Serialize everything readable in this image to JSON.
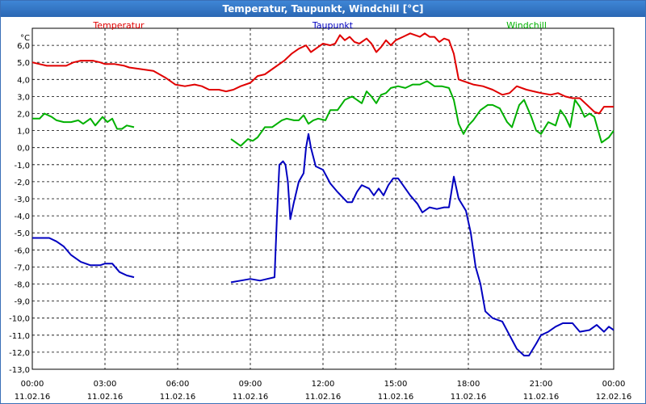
{
  "window_title": "Temperatur, Taupunkt, Windchill [°C]",
  "chart_data": {
    "type": "line",
    "title": "Temperatur, Taupunkt, Windchill [°C]",
    "ylabel": "°C",
    "ylim": [
      -13,
      7
    ],
    "xlim_hours": [
      0,
      24
    ],
    "grid": true,
    "legend_placement": "top",
    "y_ticks": [
      "6,0",
      "5,0",
      "4,0",
      "3,0",
      "2,0",
      "1,0",
      "0,0",
      "-1,0",
      "-2,0",
      "-3,0",
      "-4,0",
      "-5,0",
      "-6,0",
      "-7,0",
      "-8,0",
      "-9,0",
      "-10,0",
      "-11,0",
      "-12,0",
      "-13,0"
    ],
    "x_ticks": [
      {
        "time": "00:00",
        "date": "11.02.16"
      },
      {
        "time": "03:00",
        "date": "11.02.16"
      },
      {
        "time": "06:00",
        "date": "11.02.16"
      },
      {
        "time": "09:00",
        "date": "11.02.16"
      },
      {
        "time": "12:00",
        "date": "11.02.16"
      },
      {
        "time": "15:00",
        "date": "11.02.16"
      },
      {
        "time": "18:00",
        "date": "11.02.16"
      },
      {
        "time": "21:00",
        "date": "11.02.16"
      },
      {
        "time": "00:00",
        "date": "12.02.16"
      }
    ],
    "series": [
      {
        "name": "Temperatur",
        "color": "#e00000",
        "points": [
          [
            0,
            5.0
          ],
          [
            0.3,
            4.9
          ],
          [
            0.6,
            4.8
          ],
          [
            1.0,
            4.8
          ],
          [
            1.4,
            4.8
          ],
          [
            1.7,
            5.0
          ],
          [
            2.0,
            5.1
          ],
          [
            2.5,
            5.1
          ],
          [
            2.8,
            5.0
          ],
          [
            3.0,
            4.9
          ],
          [
            3.4,
            4.9
          ],
          [
            3.8,
            4.8
          ],
          [
            4.0,
            4.7
          ],
          [
            4.5,
            4.6
          ],
          [
            5.0,
            4.5
          ],
          [
            5.5,
            4.1
          ],
          [
            5.9,
            3.7
          ],
          [
            6.3,
            3.6
          ],
          [
            6.7,
            3.7
          ],
          [
            7.0,
            3.6
          ],
          [
            7.3,
            3.4
          ],
          [
            7.7,
            3.4
          ],
          [
            8.0,
            3.3
          ],
          [
            8.3,
            3.4
          ],
          [
            8.6,
            3.6
          ],
          [
            9.0,
            3.8
          ],
          [
            9.3,
            4.2
          ],
          [
            9.6,
            4.3
          ],
          [
            10.0,
            4.7
          ],
          [
            10.4,
            5.1
          ],
          [
            10.7,
            5.5
          ],
          [
            11.0,
            5.8
          ],
          [
            11.3,
            6.0
          ],
          [
            11.5,
            5.6
          ],
          [
            11.8,
            5.9
          ],
          [
            12.0,
            6.1
          ],
          [
            12.3,
            6.0
          ],
          [
            12.5,
            6.1
          ],
          [
            12.7,
            6.6
          ],
          [
            12.9,
            6.3
          ],
          [
            13.1,
            6.5
          ],
          [
            13.3,
            6.2
          ],
          [
            13.5,
            6.1
          ],
          [
            13.8,
            6.4
          ],
          [
            14.0,
            6.1
          ],
          [
            14.2,
            5.6
          ],
          [
            14.4,
            5.9
          ],
          [
            14.6,
            6.3
          ],
          [
            14.8,
            6.0
          ],
          [
            15.0,
            6.3
          ],
          [
            15.3,
            6.5
          ],
          [
            15.6,
            6.7
          ],
          [
            15.8,
            6.6
          ],
          [
            16.0,
            6.5
          ],
          [
            16.2,
            6.7
          ],
          [
            16.4,
            6.5
          ],
          [
            16.6,
            6.5
          ],
          [
            16.8,
            6.2
          ],
          [
            17.0,
            6.4
          ],
          [
            17.2,
            6.3
          ],
          [
            17.4,
            5.5
          ],
          [
            17.6,
            4.0
          ],
          [
            17.8,
            3.9
          ],
          [
            18.2,
            3.7
          ],
          [
            18.6,
            3.6
          ],
          [
            19.0,
            3.4
          ],
          [
            19.4,
            3.1
          ],
          [
            19.7,
            3.2
          ],
          [
            20.0,
            3.6
          ],
          [
            20.4,
            3.4
          ],
          [
            20.7,
            3.3
          ],
          [
            21.0,
            3.2
          ],
          [
            21.4,
            3.1
          ],
          [
            21.7,
            3.2
          ],
          [
            22.0,
            3.0
          ],
          [
            22.3,
            2.9
          ],
          [
            22.6,
            2.9
          ],
          [
            22.9,
            2.5
          ],
          [
            23.2,
            2.1
          ],
          [
            23.4,
            2.0
          ],
          [
            23.6,
            2.4
          ],
          [
            24.0,
            2.4
          ]
        ]
      },
      {
        "name": "Taupunkt",
        "color": "#0000c0",
        "points": [
          [
            0,
            -5.3
          ],
          [
            0.4,
            -5.3
          ],
          [
            0.7,
            -5.3
          ],
          [
            1.0,
            -5.5
          ],
          [
            1.3,
            -5.8
          ],
          [
            1.6,
            -6.3
          ],
          [
            2.0,
            -6.7
          ],
          [
            2.4,
            -6.9
          ],
          [
            2.8,
            -6.9
          ],
          [
            3.0,
            -6.8
          ],
          [
            3.3,
            -6.8
          ],
          [
            3.6,
            -7.3
          ],
          [
            3.9,
            -7.5
          ],
          [
            4.2,
            -7.6
          ],
          [
            null,
            null
          ],
          [
            8.2,
            -7.9
          ],
          [
            8.6,
            -7.8
          ],
          [
            9.0,
            -7.7
          ],
          [
            9.4,
            -7.8
          ],
          [
            9.7,
            -7.7
          ],
          [
            10.0,
            -7.6
          ],
          [
            10.1,
            -4.0
          ],
          [
            10.2,
            -1.0
          ],
          [
            10.35,
            -0.8
          ],
          [
            10.45,
            -1.0
          ],
          [
            10.55,
            -2.0
          ],
          [
            10.65,
            -4.2
          ],
          [
            10.8,
            -3.2
          ],
          [
            11.0,
            -2.0
          ],
          [
            11.2,
            -1.5
          ],
          [
            11.3,
            0.0
          ],
          [
            11.4,
            0.8
          ],
          [
            11.5,
            0.0
          ],
          [
            11.7,
            -1.1
          ],
          [
            12.0,
            -1.3
          ],
          [
            12.3,
            -2.1
          ],
          [
            12.6,
            -2.6
          ],
          [
            13.0,
            -3.2
          ],
          [
            13.2,
            -3.2
          ],
          [
            13.4,
            -2.6
          ],
          [
            13.6,
            -2.2
          ],
          [
            13.9,
            -2.4
          ],
          [
            14.1,
            -2.8
          ],
          [
            14.3,
            -2.4
          ],
          [
            14.5,
            -2.8
          ],
          [
            14.7,
            -2.2
          ],
          [
            14.9,
            -1.8
          ],
          [
            15.1,
            -1.8
          ],
          [
            15.3,
            -2.2
          ],
          [
            15.6,
            -2.8
          ],
          [
            15.9,
            -3.3
          ],
          [
            16.1,
            -3.8
          ],
          [
            16.4,
            -3.5
          ],
          [
            16.7,
            -3.6
          ],
          [
            17.0,
            -3.5
          ],
          [
            17.2,
            -3.5
          ],
          [
            17.4,
            -1.7
          ],
          [
            17.6,
            -3.0
          ],
          [
            17.9,
            -3.7
          ],
          [
            18.1,
            -5.0
          ],
          [
            18.3,
            -7.0
          ],
          [
            18.5,
            -8.0
          ],
          [
            18.7,
            -9.6
          ],
          [
            19.0,
            -10.0
          ],
          [
            19.4,
            -10.2
          ],
          [
            19.7,
            -11.0
          ],
          [
            20.0,
            -11.8
          ],
          [
            20.3,
            -12.2
          ],
          [
            20.5,
            -12.2
          ],
          [
            20.8,
            -11.5
          ],
          [
            21.0,
            -11.0
          ],
          [
            21.3,
            -10.8
          ],
          [
            21.6,
            -10.5
          ],
          [
            21.9,
            -10.3
          ],
          [
            22.3,
            -10.3
          ],
          [
            22.6,
            -10.8
          ],
          [
            23.0,
            -10.7
          ],
          [
            23.3,
            -10.4
          ],
          [
            23.6,
            -10.8
          ],
          [
            23.8,
            -10.5
          ],
          [
            24.0,
            -10.7
          ]
        ]
      },
      {
        "name": "Windchill",
        "color": "#00b000",
        "points": [
          [
            0,
            1.7
          ],
          [
            0.3,
            1.7
          ],
          [
            0.5,
            2.0
          ],
          [
            0.8,
            1.8
          ],
          [
            1.0,
            1.6
          ],
          [
            1.3,
            1.5
          ],
          [
            1.6,
            1.5
          ],
          [
            1.9,
            1.6
          ],
          [
            2.1,
            1.4
          ],
          [
            2.4,
            1.7
          ],
          [
            2.6,
            1.3
          ],
          [
            2.9,
            1.8
          ],
          [
            3.1,
            1.5
          ],
          [
            3.3,
            1.7
          ],
          [
            3.5,
            1.1
          ],
          [
            3.7,
            1.1
          ],
          [
            3.9,
            1.3
          ],
          [
            4.2,
            1.2
          ],
          [
            null,
            null
          ],
          [
            8.2,
            0.5
          ],
          [
            8.6,
            0.1
          ],
          [
            8.9,
            0.5
          ],
          [
            9.1,
            0.4
          ],
          [
            9.3,
            0.6
          ],
          [
            9.6,
            1.2
          ],
          [
            9.9,
            1.2
          ],
          [
            10.1,
            1.4
          ],
          [
            10.3,
            1.6
          ],
          [
            10.5,
            1.7
          ],
          [
            10.8,
            1.6
          ],
          [
            11.0,
            1.6
          ],
          [
            11.2,
            1.9
          ],
          [
            11.4,
            1.4
          ],
          [
            11.6,
            1.6
          ],
          [
            11.8,
            1.7
          ],
          [
            12.1,
            1.6
          ],
          [
            12.3,
            2.2
          ],
          [
            12.6,
            2.2
          ],
          [
            12.9,
            2.8
          ],
          [
            13.2,
            3.0
          ],
          [
            13.4,
            2.8
          ],
          [
            13.6,
            2.6
          ],
          [
            13.8,
            3.3
          ],
          [
            14.0,
            3.0
          ],
          [
            14.2,
            2.6
          ],
          [
            14.4,
            3.1
          ],
          [
            14.6,
            3.2
          ],
          [
            14.8,
            3.5
          ],
          [
            15.1,
            3.6
          ],
          [
            15.4,
            3.5
          ],
          [
            15.7,
            3.7
          ],
          [
            16.0,
            3.7
          ],
          [
            16.3,
            3.9
          ],
          [
            16.6,
            3.6
          ],
          [
            16.9,
            3.6
          ],
          [
            17.2,
            3.5
          ],
          [
            17.4,
            2.8
          ],
          [
            17.6,
            1.4
          ],
          [
            17.8,
            0.8
          ],
          [
            18.0,
            1.3
          ],
          [
            18.2,
            1.6
          ],
          [
            18.5,
            2.2
          ],
          [
            18.8,
            2.5
          ],
          [
            19.0,
            2.5
          ],
          [
            19.3,
            2.3
          ],
          [
            19.6,
            1.5
          ],
          [
            19.8,
            1.2
          ],
          [
            20.1,
            2.5
          ],
          [
            20.3,
            2.8
          ],
          [
            20.6,
            1.8
          ],
          [
            20.8,
            1.0
          ],
          [
            21.0,
            0.8
          ],
          [
            21.3,
            1.5
          ],
          [
            21.6,
            1.3
          ],
          [
            21.8,
            2.2
          ],
          [
            22.0,
            1.8
          ],
          [
            22.2,
            1.2
          ],
          [
            22.4,
            2.8
          ],
          [
            22.6,
            2.4
          ],
          [
            22.8,
            1.8
          ],
          [
            23.0,
            2.0
          ],
          [
            23.2,
            1.8
          ],
          [
            23.5,
            0.3
          ],
          [
            23.8,
            0.6
          ],
          [
            24.0,
            1.0
          ]
        ]
      }
    ]
  }
}
